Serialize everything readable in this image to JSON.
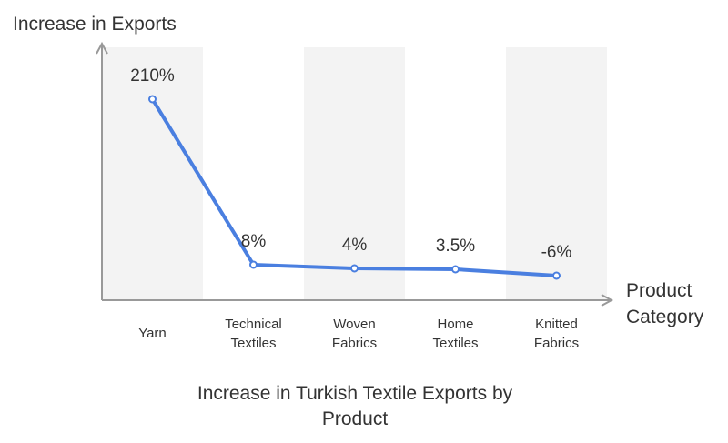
{
  "chart_data": {
    "type": "line",
    "title": "Increase in Turkish Textile Exports by Product",
    "xlabel": "Product Category",
    "ylabel": "Increase in Exports",
    "categories": [
      "Yarn",
      "Technical Textiles",
      "Woven Fabrics",
      "Home Textiles",
      "Knitted Fabrics"
    ],
    "values": [
      210,
      8,
      4,
      3.5,
      -6
    ],
    "data_labels": [
      "210%",
      "8%",
      "4%",
      "3.5%",
      "-6%"
    ],
    "unit": "%",
    "colors": {
      "line": "#4a7fe0",
      "band": "#f3f3f3",
      "axis": "#999999"
    },
    "grid": false,
    "legend": "none"
  }
}
